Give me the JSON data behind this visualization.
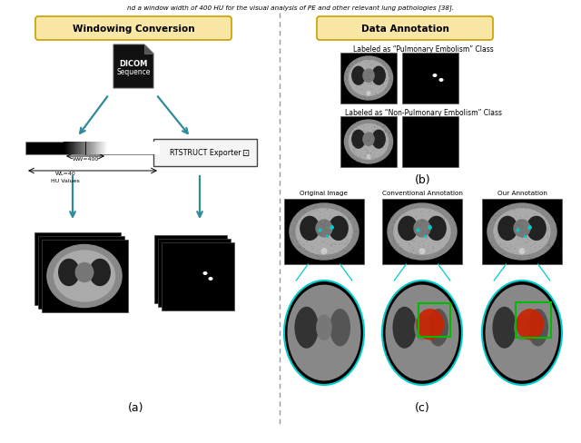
{
  "title_top": "nd a window width of 400 HU for the visual analysis of PE and other relevant lung pathologies [38].",
  "left_title": "Windowing Conversion",
  "right_title": "Data Annotation",
  "label_a": "(a)",
  "label_b": "(b)",
  "label_c": "(c)",
  "dicom_text1": "DICOM",
  "dicom_text2": "Sequence",
  "rtstruct_text": "RTSTRUCT Exporter",
  "ww_text": "WW=400",
  "wl_text": "WL=40",
  "hu_text": "HU Values",
  "pe_label": "Labeled as “Pulmonary Embolism” Class",
  "non_pe_label": "Labeled as “Non-Pulmonary Embolism” Class",
  "orig_label": "Original Image",
  "conv_label": "Conventional Annotation",
  "our_label": "Our Annotation",
  "arrow_color": "#2E8B9A",
  "title_edge_color": "#C8A000",
  "title_face_color": "#FAE7A5",
  "bg_color": "#FFFFFF",
  "dashed_color": "#999999",
  "cyan_color": "#00CCCC",
  "green_color": "#00BB00",
  "red_color": "#CC2200"
}
